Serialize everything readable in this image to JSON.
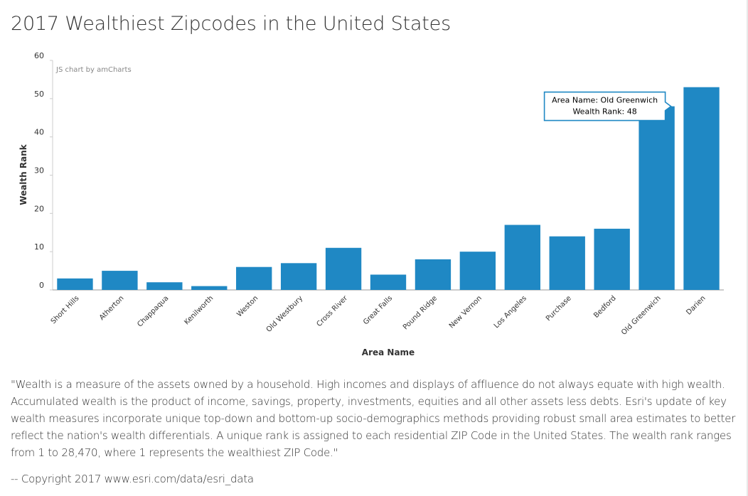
{
  "page": {
    "title": "2017 Wealthiest Zipcodes in the United States",
    "description": "\"Wealth is a measure of the assets owned by a household. High incomes and displays of affluence do not always equate with high wealth. Accumulated wealth is the product of income, savings, property, investments, equities and all other assets less debts. Esri's update of key wealth measures incorporate unique top-down and bottom-up socio-demographics methods providing robust small area estimates to better reflect the nation's wealth differentials. A unique rank is assigned to each residential ZIP Code in the United States. The wealth rank ranges from 1 to 28,470, where 1 represents the wealthiest ZIP Code.\"",
    "copyright": "-- Copyright 2017 www.esri.com/data/esri_data"
  },
  "chart_data": {
    "type": "bar",
    "credit": "JS chart by amCharts",
    "xlabel": "Area Name",
    "ylabel": "Wealth Rank",
    "ylim": [
      0,
      60
    ],
    "yticks": [
      0,
      10,
      20,
      30,
      40,
      50,
      60
    ],
    "grid": false,
    "bar_color": "#1f88c4",
    "categories": [
      "Short Hills",
      "Atherton",
      "Chappaqua",
      "Kenilworth",
      "Weston",
      "Old Westbury",
      "Cross River",
      "Great Falls",
      "Pound Ridge",
      "New Vernon",
      "Los Angeles",
      "Purchase",
      "Bedford",
      "Old Greenwich",
      "Darien"
    ],
    "values": [
      3,
      5,
      2,
      1,
      6,
      7,
      11,
      4,
      8,
      10,
      17,
      14,
      16,
      48,
      53
    ],
    "tooltip": {
      "category": "Old Greenwich",
      "lines": [
        "Area Name: Old Greenwich",
        "Wealth Rank: 48"
      ]
    }
  }
}
